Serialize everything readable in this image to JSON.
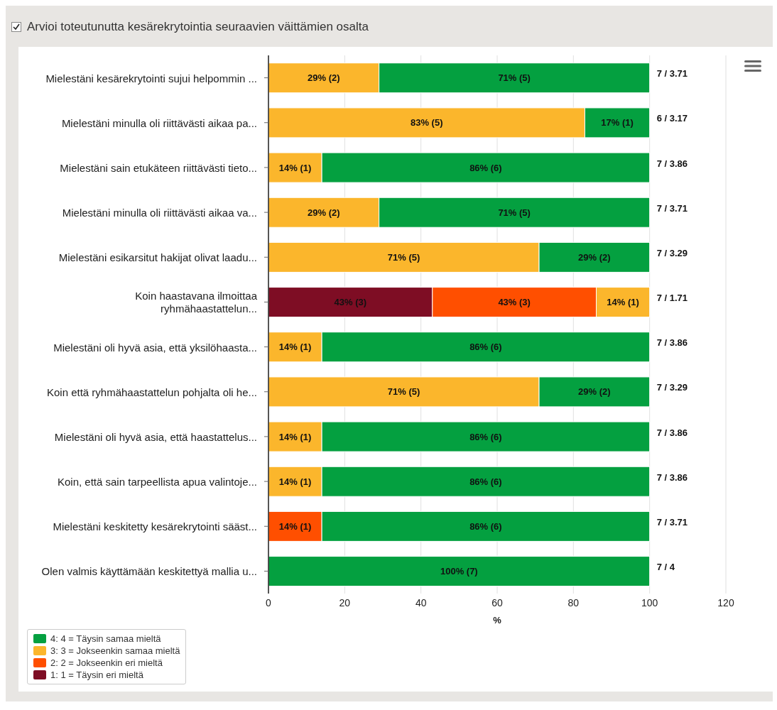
{
  "chart_data": {
    "type": "bar",
    "orientation": "horizontal",
    "stacked": true,
    "title": "Arvioi toteutunutta kesärekrytointia seuraavien väittämien osalta",
    "categories": [
      "Mielestäni kesärekrytointi sujui helpommin ...",
      "Mielestäni minulla oli riittävästi aikaa pa...",
      "Mielestäni sain etukäteen riittävästi tieto...",
      "Mielestäni minulla oli riittävästi aikaa va...",
      "Mielestäni esikarsitut hakijat olivat laadu...",
      "Koin haastavana ilmoittaa ryhmähaastattelun...",
      "Mielestäni oli hyvä asia, että yksilöhaasta...",
      "Koin että ryhmähaastattelun pohjalta oli he...",
      "Mielestäni oli hyvä asia, että haastattelus...",
      "Koin, että sain tarpeellista apua valintoje...",
      "Mielestäni keskitetty kesärekrytointi sääst...",
      "Olen valmis käyttämään keskitettyä mallia u..."
    ],
    "series": [
      {
        "name": "1: 1 = Täysin eri mieltä",
        "color": "#7e0d24",
        "values": [
          null,
          null,
          null,
          null,
          null,
          43,
          null,
          null,
          null,
          null,
          null,
          null
        ],
        "value_labels": [
          null,
          null,
          null,
          null,
          null,
          "43% (3)",
          null,
          null,
          null,
          null,
          null,
          null
        ]
      },
      {
        "name": "2: 2 = Jokseenkin eri mieltä",
        "color": "#ff4f00",
        "values": [
          null,
          null,
          null,
          null,
          null,
          43,
          null,
          null,
          null,
          null,
          14,
          null
        ],
        "value_labels": [
          null,
          null,
          null,
          null,
          null,
          "43% (3)",
          null,
          null,
          null,
          null,
          "14% (1)",
          null
        ]
      },
      {
        "name": "3: 3 = Jokseenkin samaa mieltä",
        "color": "#fbb62c",
        "values": [
          29,
          83,
          14,
          29,
          71,
          14,
          14,
          71,
          14,
          14,
          null,
          null
        ],
        "value_labels": [
          "29% (2)",
          "83% (5)",
          "14% (1)",
          "29% (2)",
          "71% (5)",
          "14% (1)",
          "14% (1)",
          "71% (5)",
          "14% (1)",
          "14% (1)",
          null,
          null
        ]
      },
      {
        "name": "4: 4 = Täysin samaa mieltä",
        "color": "#04a040",
        "values": [
          71,
          17,
          86,
          71,
          29,
          null,
          86,
          29,
          86,
          86,
          86,
          100
        ],
        "value_labels": [
          "71% (5)",
          "17% (1)",
          "86% (6)",
          "71% (5)",
          "29% (2)",
          null,
          "86% (6)",
          "29% (2)",
          "86% (6)",
          "86% (6)",
          "86% (6)",
          "100% (7)"
        ]
      }
    ],
    "annotations": [
      "7 / 3.71",
      "6 / 3.17",
      "7 / 3.86",
      "7 / 3.71",
      "7 / 3.29",
      "7 / 1.71",
      "7 / 3.86",
      "7 / 3.29",
      "7 / 3.86",
      "7 / 3.86",
      "7 / 3.71",
      "7 / 4"
    ],
    "xlabel": "%",
    "xlim": [
      0,
      120
    ],
    "xticks": [
      0,
      20,
      40,
      60,
      80,
      100,
      120
    ],
    "grid": "x",
    "legend": "bottom left"
  }
}
